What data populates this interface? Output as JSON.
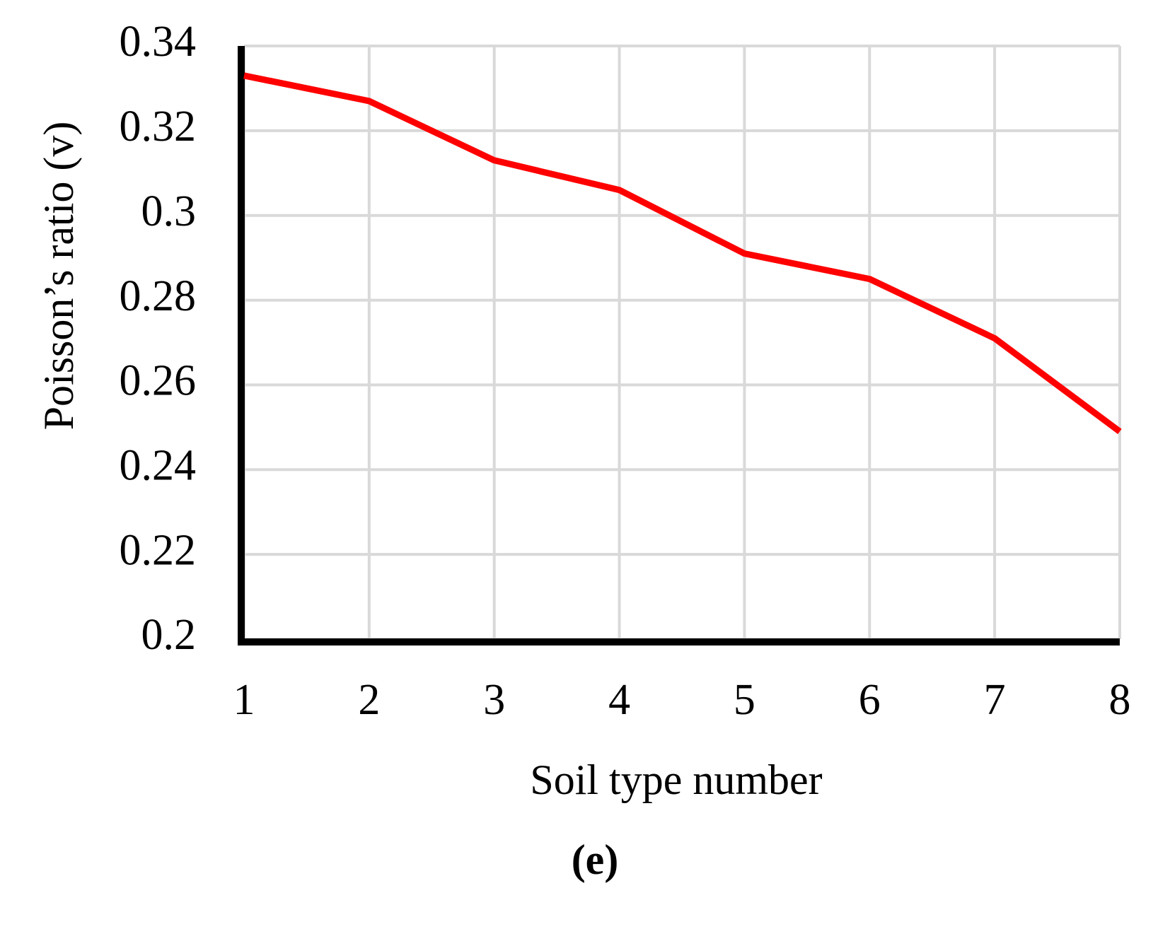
{
  "chart_data": {
    "type": "line",
    "x_label": "Soil type number",
    "y_label": "Poisson’s ratio (v)",
    "caption": "(e)",
    "x": [
      1,
      2,
      3,
      4,
      5,
      6,
      7,
      8
    ],
    "series": [
      {
        "name": "Poisson’s ratio",
        "color": "#ff0000",
        "values": [
          0.333,
          0.327,
          0.313,
          0.306,
          0.291,
          0.285,
          0.271,
          0.249
        ]
      }
    ],
    "xlim": [
      1,
      8
    ],
    "xticks": [
      1,
      2,
      3,
      4,
      5,
      6,
      7,
      8
    ],
    "ylim": [
      0.2,
      0.34
    ],
    "yticks": [
      0.2,
      0.22,
      0.24,
      0.26,
      0.28,
      0.3,
      0.32,
      0.34
    ],
    "grid": true
  }
}
